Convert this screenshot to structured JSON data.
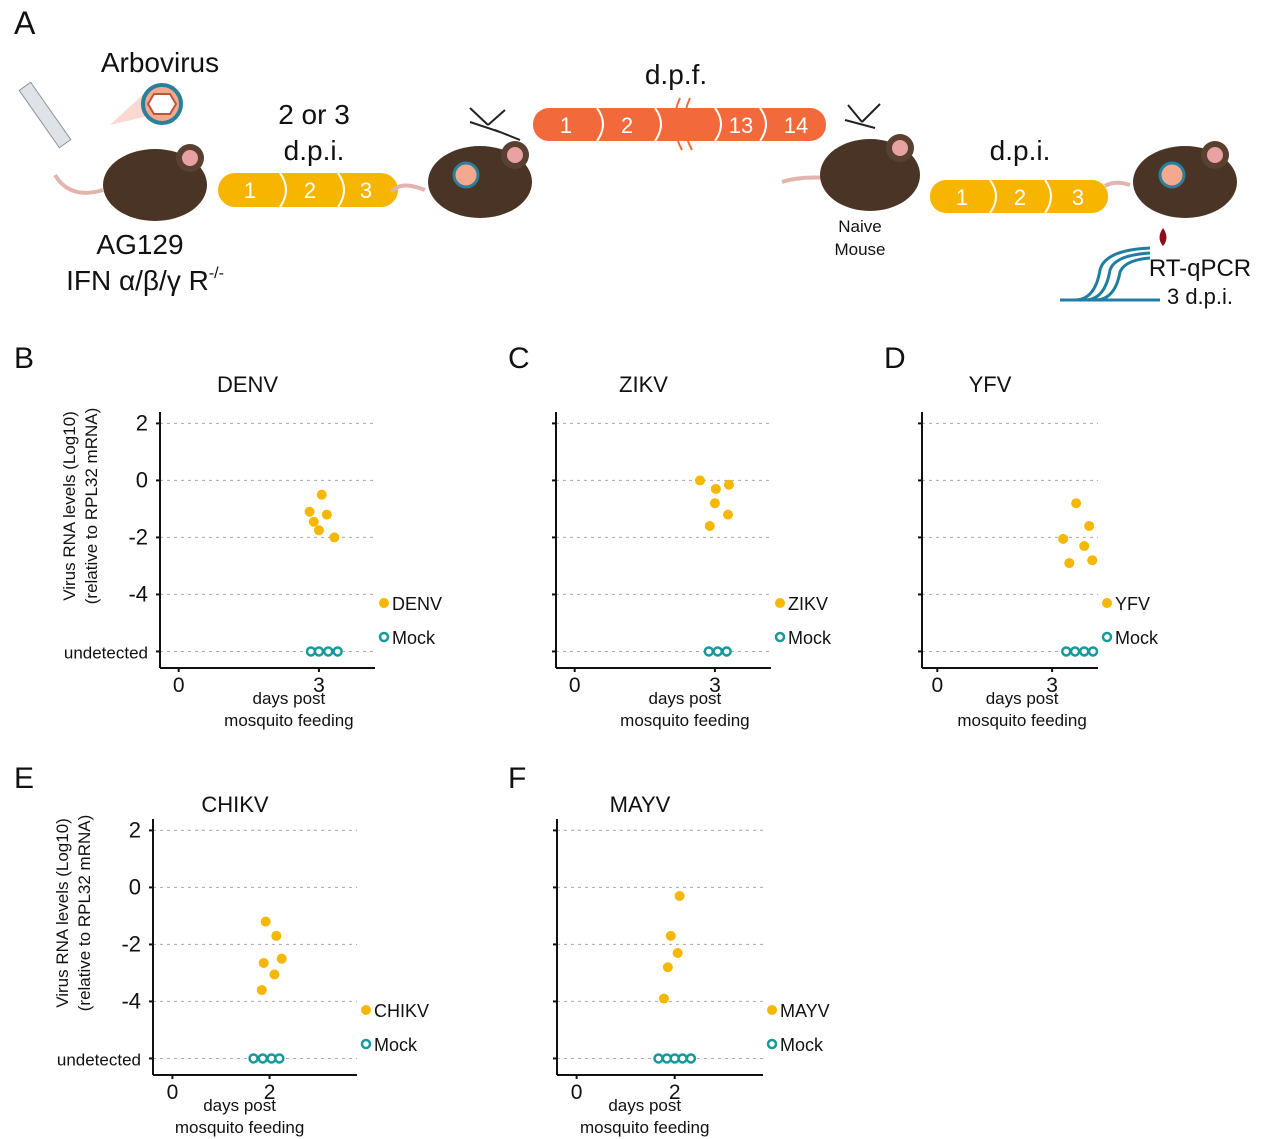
{
  "schematic": {
    "panel": "A",
    "virus": "Arbovirus",
    "strain": "AG129",
    "genotype": "IFN α/β/γ R",
    "genotype_sup": "-/-",
    "stage1_title": [
      "2 or 3",
      "d.p.i."
    ],
    "stage1_days": [
      "1",
      "2",
      "3"
    ],
    "feeding_title": "d.p.f.",
    "feeding_days": [
      "1",
      "2",
      "13",
      "14"
    ],
    "naive": [
      "Naive",
      "Mouse"
    ],
    "stage2_title": "d.p.i.",
    "stage2_days": [
      "1",
      "2",
      "3"
    ],
    "assay": "RT-qPCR",
    "assay_time": "3 d.p.i."
  },
  "chart_data": [
    {
      "type": "scatter",
      "panel": "B",
      "title": "DENV",
      "ylabel": [
        "Virus RNA levels (Log10)",
        "(relative to RPL32 mRNA)"
      ],
      "xlabel": [
        "days post",
        "mosquito feeding"
      ],
      "xlim": [
        -0.4,
        4.2
      ],
      "xticks": [
        0,
        3
      ],
      "ylim": [
        -6.3,
        2.4
      ],
      "yticks": [
        {
          "value": -6,
          "label": "undetected"
        },
        -4,
        -2,
        0,
        2
      ],
      "ytick_labels": true,
      "grid": true,
      "series": [
        {
          "name": "DENV",
          "color": "#f5b700",
          "marker": "filled",
          "x": [
            3.06,
            2.8,
            3.17,
            2.89,
            3.0,
            3.33
          ],
          "values": [
            -0.5,
            -1.1,
            -1.2,
            -1.45,
            -1.75,
            -2.0
          ]
        },
        {
          "name": "Mock",
          "color": "#16999a",
          "marker": "open",
          "x": [
            2.83,
            3.0,
            3.2,
            3.4
          ],
          "values": [
            -6,
            -6,
            -6,
            -6
          ]
        }
      ]
    },
    {
      "type": "scatter",
      "panel": "C",
      "title": "ZIKV",
      "xlabel": [
        "days post",
        "mosquito feeding"
      ],
      "xlim": [
        -0.4,
        4.2
      ],
      "xticks": [
        0,
        3
      ],
      "ylim": [
        -6.3,
        2.4
      ],
      "yticks": [
        -6,
        -4,
        -2,
        0,
        2
      ],
      "ytick_labels": false,
      "grid": true,
      "series": [
        {
          "name": "ZIKV",
          "color": "#f5b700",
          "marker": "filled",
          "x": [
            2.68,
            3.3,
            3.02,
            3.0,
            3.28,
            2.89
          ],
          "values": [
            0,
            -0.15,
            -0.3,
            -0.8,
            -1.2,
            -1.6
          ]
        },
        {
          "name": "Mock",
          "color": "#16999a",
          "marker": "open",
          "x": [
            2.87,
            3.06,
            3.25
          ],
          "values": [
            -6,
            -6,
            -6
          ]
        }
      ]
    },
    {
      "type": "scatter",
      "panel": "D",
      "title": "YFV",
      "xlabel": [
        "days post",
        "mosquito feeding"
      ],
      "xlim": [
        -0.4,
        4.2
      ],
      "xticks": [
        0,
        3
      ],
      "ylim": [
        -6.3,
        2.4
      ],
      "yticks": [
        -6,
        -4,
        -2,
        0,
        2
      ],
      "ytick_labels": false,
      "grid": true,
      "series": [
        {
          "name": "YFV",
          "color": "#f5b700",
          "marker": "filled",
          "x": [
            3.63,
            3.97,
            3.29,
            3.84,
            3.45,
            4.05
          ],
          "values": [
            -0.8,
            -1.6,
            -2.05,
            -2.3,
            -2.9,
            -2.8
          ]
        },
        {
          "name": "Mock",
          "color": "#16999a",
          "marker": "open",
          "x": [
            3.37,
            3.6,
            3.84,
            4.07
          ],
          "values": [
            -6,
            -6,
            -6,
            -6
          ]
        }
      ]
    },
    {
      "type": "scatter",
      "panel": "E",
      "title": "CHIKV",
      "ylabel": [
        "Virus RNA levels (Log10)",
        "(relative to RPL32 mRNA)"
      ],
      "xlabel": [
        "days post",
        "mosquito feeding"
      ],
      "xlim": [
        -0.4,
        3.8
      ],
      "xticks": [
        0,
        2
      ],
      "ylim": [
        -6.3,
        2.4
      ],
      "yticks": [
        {
          "value": -6,
          "label": "undetected"
        },
        -4,
        -2,
        0,
        2
      ],
      "ytick_labels": true,
      "grid": true,
      "series": [
        {
          "name": "CHIKV",
          "color": "#f5b700",
          "marker": "filled",
          "x": [
            1.92,
            2.14,
            2.25,
            1.88,
            2.1,
            1.84
          ],
          "values": [
            -1.2,
            -1.7,
            -2.5,
            -2.65,
            -3.05,
            -3.6
          ]
        },
        {
          "name": "Mock",
          "color": "#16999a",
          "marker": "open",
          "x": [
            1.67,
            1.86,
            2.04,
            2.2
          ],
          "values": [
            -6,
            -6,
            -6,
            -6
          ]
        }
      ]
    },
    {
      "type": "scatter",
      "panel": "F",
      "title": "MAYV",
      "xlabel": [
        "days post",
        "mosquito feeding"
      ],
      "xlim": [
        -0.4,
        3.8
      ],
      "xticks": [
        0,
        2
      ],
      "ylim": [
        -6.3,
        2.4
      ],
      "yticks": [
        -6,
        -4,
        -2,
        0,
        2
      ],
      "ytick_labels": false,
      "grid": true,
      "series": [
        {
          "name": "MAYV",
          "color": "#f5b700",
          "marker": "filled",
          "x": [
            2.1,
            1.92,
            2.06,
            1.86,
            1.78
          ],
          "values": [
            -0.3,
            -1.7,
            -2.3,
            -2.8,
            -3.9
          ]
        },
        {
          "name": "Mock",
          "color": "#16999a",
          "marker": "open",
          "x": [
            1.67,
            1.84,
            2.0,
            2.16,
            2.33
          ],
          "values": [
            -6,
            -6,
            -6,
            -6,
            -6
          ]
        }
      ]
    }
  ]
}
